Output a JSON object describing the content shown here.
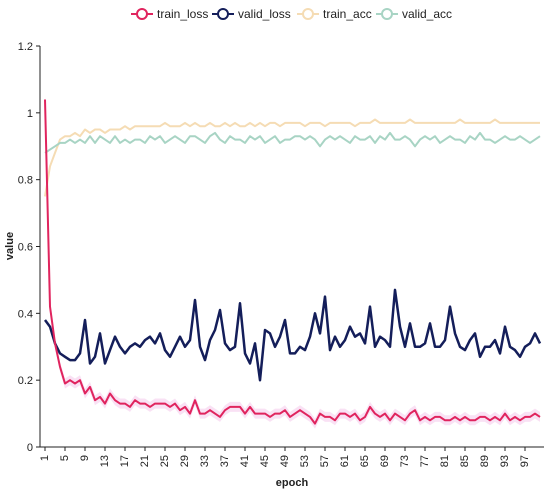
{
  "chart_data": {
    "type": "line",
    "xlabel": "epoch",
    "ylabel": "value",
    "ylim": [
      0,
      1.2
    ],
    "yticks": [
      "0",
      "0.2",
      "0.4",
      "0.6",
      "0.8",
      "1",
      "1.2"
    ],
    "xticks": [
      "1",
      "5",
      "9",
      "13",
      "17",
      "21",
      "25",
      "29",
      "33",
      "37",
      "41",
      "45",
      "49",
      "53",
      "57",
      "61",
      "65",
      "69",
      "73",
      "77",
      "81",
      "85",
      "89",
      "93",
      "97"
    ],
    "legend_position": "top",
    "grid": false,
    "series": [
      {
        "name": "train_loss",
        "color": "#e0245e",
        "values": [
          1.04,
          0.42,
          0.31,
          0.24,
          0.19,
          0.2,
          0.19,
          0.2,
          0.16,
          0.18,
          0.14,
          0.15,
          0.13,
          0.16,
          0.14,
          0.13,
          0.13,
          0.12,
          0.14,
          0.13,
          0.13,
          0.12,
          0.13,
          0.13,
          0.13,
          0.12,
          0.13,
          0.11,
          0.12,
          0.1,
          0.14,
          0.1,
          0.1,
          0.11,
          0.1,
          0.09,
          0.11,
          0.12,
          0.12,
          0.12,
          0.1,
          0.12,
          0.1,
          0.1,
          0.1,
          0.09,
          0.1,
          0.1,
          0.11,
          0.09,
          0.1,
          0.11,
          0.1,
          0.09,
          0.07,
          0.1,
          0.09,
          0.09,
          0.08,
          0.1,
          0.1,
          0.09,
          0.1,
          0.08,
          0.09,
          0.12,
          0.1,
          0.09,
          0.1,
          0.08,
          0.1,
          0.09,
          0.08,
          0.1,
          0.11,
          0.08,
          0.09,
          0.08,
          0.09,
          0.09,
          0.08,
          0.08,
          0.09,
          0.08,
          0.09,
          0.08,
          0.08,
          0.09,
          0.09,
          0.08,
          0.09,
          0.08,
          0.1,
          0.08,
          0.09,
          0.08,
          0.09,
          0.09,
          0.1,
          0.09
        ]
      },
      {
        "name": "valid_loss",
        "color": "#141e5a",
        "values": [
          0.38,
          0.36,
          0.31,
          0.28,
          0.27,
          0.26,
          0.26,
          0.28,
          0.38,
          0.25,
          0.27,
          0.34,
          0.25,
          0.29,
          0.33,
          0.3,
          0.28,
          0.3,
          0.31,
          0.3,
          0.32,
          0.33,
          0.31,
          0.34,
          0.29,
          0.27,
          0.3,
          0.33,
          0.3,
          0.32,
          0.44,
          0.3,
          0.26,
          0.32,
          0.35,
          0.41,
          0.31,
          0.29,
          0.3,
          0.43,
          0.28,
          0.25,
          0.31,
          0.2,
          0.35,
          0.34,
          0.3,
          0.33,
          0.38,
          0.28,
          0.28,
          0.3,
          0.29,
          0.33,
          0.4,
          0.34,
          0.45,
          0.29,
          0.33,
          0.3,
          0.32,
          0.36,
          0.33,
          0.34,
          0.31,
          0.42,
          0.3,
          0.33,
          0.32,
          0.3,
          0.47,
          0.36,
          0.3,
          0.37,
          0.3,
          0.3,
          0.31,
          0.37,
          0.3,
          0.3,
          0.32,
          0.42,
          0.34,
          0.3,
          0.29,
          0.32,
          0.34,
          0.27,
          0.3,
          0.3,
          0.32,
          0.28,
          0.36,
          0.3,
          0.29,
          0.27,
          0.3,
          0.31,
          0.34,
          0.31
        ]
      },
      {
        "name": "train_acc",
        "color": "#f5dcb4",
        "values": [
          0.75,
          0.84,
          0.88,
          0.92,
          0.93,
          0.93,
          0.94,
          0.93,
          0.95,
          0.94,
          0.95,
          0.95,
          0.94,
          0.95,
          0.95,
          0.95,
          0.96,
          0.95,
          0.96,
          0.96,
          0.96,
          0.96,
          0.96,
          0.96,
          0.97,
          0.96,
          0.96,
          0.96,
          0.97,
          0.96,
          0.97,
          0.96,
          0.96,
          0.97,
          0.96,
          0.96,
          0.97,
          0.96,
          0.97,
          0.96,
          0.96,
          0.97,
          0.96,
          0.97,
          0.96,
          0.97,
          0.97,
          0.96,
          0.97,
          0.97,
          0.97,
          0.97,
          0.96,
          0.97,
          0.97,
          0.97,
          0.96,
          0.97,
          0.97,
          0.97,
          0.97,
          0.97,
          0.96,
          0.97,
          0.97,
          0.97,
          0.98,
          0.97,
          0.97,
          0.97,
          0.97,
          0.97,
          0.97,
          0.98,
          0.97,
          0.97,
          0.97,
          0.97,
          0.97,
          0.97,
          0.97,
          0.97,
          0.97,
          0.98,
          0.97,
          0.97,
          0.97,
          0.97,
          0.97,
          0.97,
          0.98,
          0.97,
          0.97,
          0.97,
          0.97,
          0.97,
          0.97,
          0.97,
          0.97,
          0.97
        ]
      },
      {
        "name": "valid_acc",
        "color": "#a8d4c4",
        "values": [
          0.88,
          0.89,
          0.9,
          0.91,
          0.91,
          0.92,
          0.91,
          0.92,
          0.91,
          0.93,
          0.91,
          0.93,
          0.92,
          0.91,
          0.93,
          0.91,
          0.92,
          0.91,
          0.92,
          0.92,
          0.91,
          0.93,
          0.92,
          0.93,
          0.91,
          0.92,
          0.93,
          0.92,
          0.91,
          0.93,
          0.93,
          0.92,
          0.91,
          0.93,
          0.94,
          0.92,
          0.91,
          0.93,
          0.92,
          0.92,
          0.91,
          0.93,
          0.92,
          0.93,
          0.91,
          0.92,
          0.93,
          0.91,
          0.92,
          0.92,
          0.93,
          0.93,
          0.92,
          0.93,
          0.92,
          0.9,
          0.92,
          0.93,
          0.92,
          0.93,
          0.92,
          0.91,
          0.93,
          0.92,
          0.92,
          0.93,
          0.91,
          0.93,
          0.92,
          0.94,
          0.92,
          0.92,
          0.93,
          0.92,
          0.9,
          0.92,
          0.93,
          0.92,
          0.93,
          0.91,
          0.92,
          0.93,
          0.92,
          0.92,
          0.91,
          0.93,
          0.92,
          0.94,
          0.92,
          0.92,
          0.91,
          0.92,
          0.93,
          0.92,
          0.92,
          0.93,
          0.92,
          0.91,
          0.92,
          0.93
        ]
      }
    ]
  }
}
